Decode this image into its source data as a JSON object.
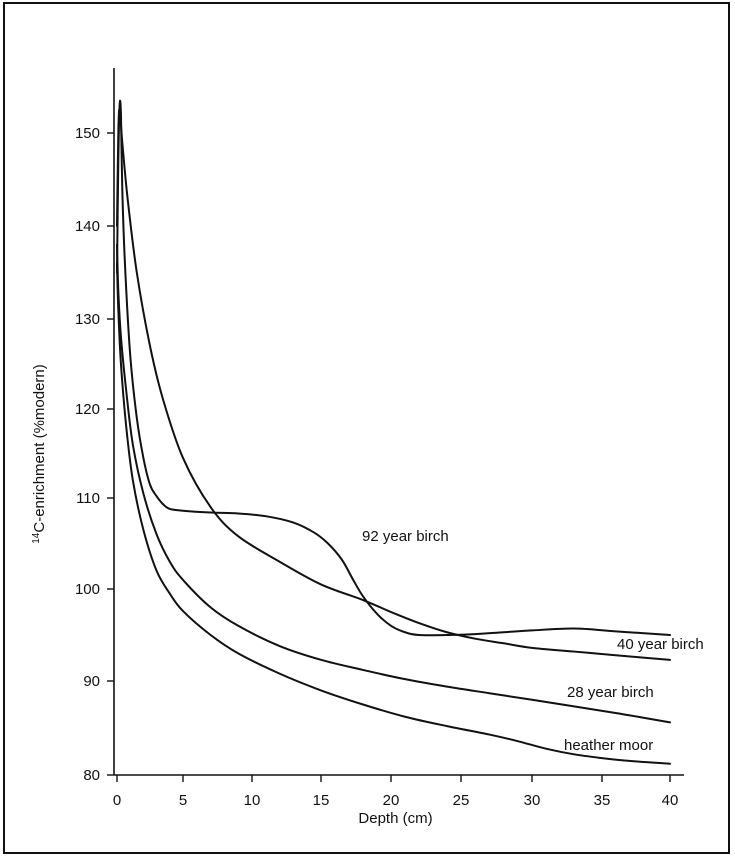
{
  "chart_data": {
    "type": "line",
    "xlabel": "Depth (cm)",
    "ylabel_superscript": "14",
    "ylabel_main": "C-enrichment (%modern)",
    "xlim": [
      0,
      40
    ],
    "ylim": [
      80,
      155
    ],
    "xticks": [
      0,
      5,
      10,
      15,
      20,
      25,
      30,
      35,
      40
    ],
    "yticks": [
      80,
      90,
      100,
      110,
      120,
      130,
      140,
      150
    ],
    "grid": false,
    "legend": "none",
    "series": [
      {
        "name": "92 year birch",
        "points": [
          [
            0.0,
            135
          ],
          [
            0.1,
            147
          ],
          [
            0.2,
            153
          ],
          [
            0.3,
            152
          ],
          [
            0.4,
            144
          ],
          [
            0.6,
            136
          ],
          [
            1.0,
            126
          ],
          [
            1.5,
            119
          ],
          [
            2.0,
            114.5
          ],
          [
            2.5,
            111.5
          ],
          [
            3.0,
            110.2
          ],
          [
            3.5,
            109.3
          ],
          [
            4.0,
            108.8
          ],
          [
            5,
            108.6
          ],
          [
            7,
            108.4
          ],
          [
            9,
            108.3
          ],
          [
            11,
            108.0
          ],
          [
            13,
            107.3
          ],
          [
            14.5,
            106.2
          ],
          [
            15.5,
            105.0
          ],
          [
            16.5,
            103.2
          ],
          [
            17.3,
            101.0
          ],
          [
            18.0,
            99.2
          ],
          [
            19,
            97.3
          ],
          [
            20,
            96.0
          ],
          [
            21,
            95.3
          ],
          [
            22,
            95.0
          ],
          [
            24,
            95.0
          ],
          [
            26,
            95.1
          ],
          [
            28,
            95.3
          ],
          [
            30,
            95.5
          ],
          [
            33,
            95.7
          ],
          [
            36,
            95.4
          ],
          [
            40,
            95.0
          ]
        ]
      },
      {
        "name": "40 year birch",
        "points": [
          [
            0.0,
            140
          ],
          [
            0.1,
            150
          ],
          [
            0.2,
            152.5
          ],
          [
            0.4,
            149
          ],
          [
            0.8,
            143
          ],
          [
            1.5,
            135
          ],
          [
            2.5,
            127
          ],
          [
            3.5,
            121
          ],
          [
            5,
            114.5
          ],
          [
            7,
            109
          ],
          [
            9,
            105.8
          ],
          [
            12,
            103
          ],
          [
            15,
            100.5
          ],
          [
            18,
            98.8
          ],
          [
            20,
            97.5
          ],
          [
            22,
            96.3
          ],
          [
            24,
            95.3
          ],
          [
            26,
            94.6
          ],
          [
            28,
            94.1
          ],
          [
            30,
            93.6
          ],
          [
            33,
            93.2
          ],
          [
            36,
            92.8
          ],
          [
            40,
            92.3
          ]
        ]
      },
      {
        "name": "28 year birch",
        "points": [
          [
            0.0,
            138
          ],
          [
            0.1,
            133
          ],
          [
            0.3,
            128
          ],
          [
            0.7,
            122
          ],
          [
            1.2,
            116
          ],
          [
            2,
            110.5
          ],
          [
            3,
            106
          ],
          [
            4,
            103
          ],
          [
            5,
            101
          ],
          [
            7,
            98
          ],
          [
            9,
            96
          ],
          [
            12,
            93.8
          ],
          [
            15,
            92.3
          ],
          [
            18,
            91.2
          ],
          [
            21,
            90.2
          ],
          [
            24,
            89.4
          ],
          [
            27,
            88.7
          ],
          [
            30,
            88.0
          ],
          [
            33,
            87.3
          ],
          [
            36,
            86.6
          ],
          [
            38,
            86.1
          ],
          [
            40,
            85.6
          ]
        ]
      },
      {
        "name": "heather moor",
        "points": [
          [
            0.0,
            136
          ],
          [
            0.1,
            131
          ],
          [
            0.3,
            125
          ],
          [
            0.7,
            118
          ],
          [
            1.2,
            112
          ],
          [
            2,
            106.5
          ],
          [
            3,
            102
          ],
          [
            4,
            99.5
          ],
          [
            5,
            97.6
          ],
          [
            7,
            95
          ],
          [
            9,
            93
          ],
          [
            12,
            90.8
          ],
          [
            15,
            89.0
          ],
          [
            18,
            87.5
          ],
          [
            21,
            86.2
          ],
          [
            24,
            85.2
          ],
          [
            27,
            84.3
          ],
          [
            29,
            83.6
          ],
          [
            31,
            82.8
          ],
          [
            33,
            82.2
          ],
          [
            35,
            81.8
          ],
          [
            37,
            81.5
          ],
          [
            40,
            81.2
          ]
        ]
      }
    ]
  }
}
